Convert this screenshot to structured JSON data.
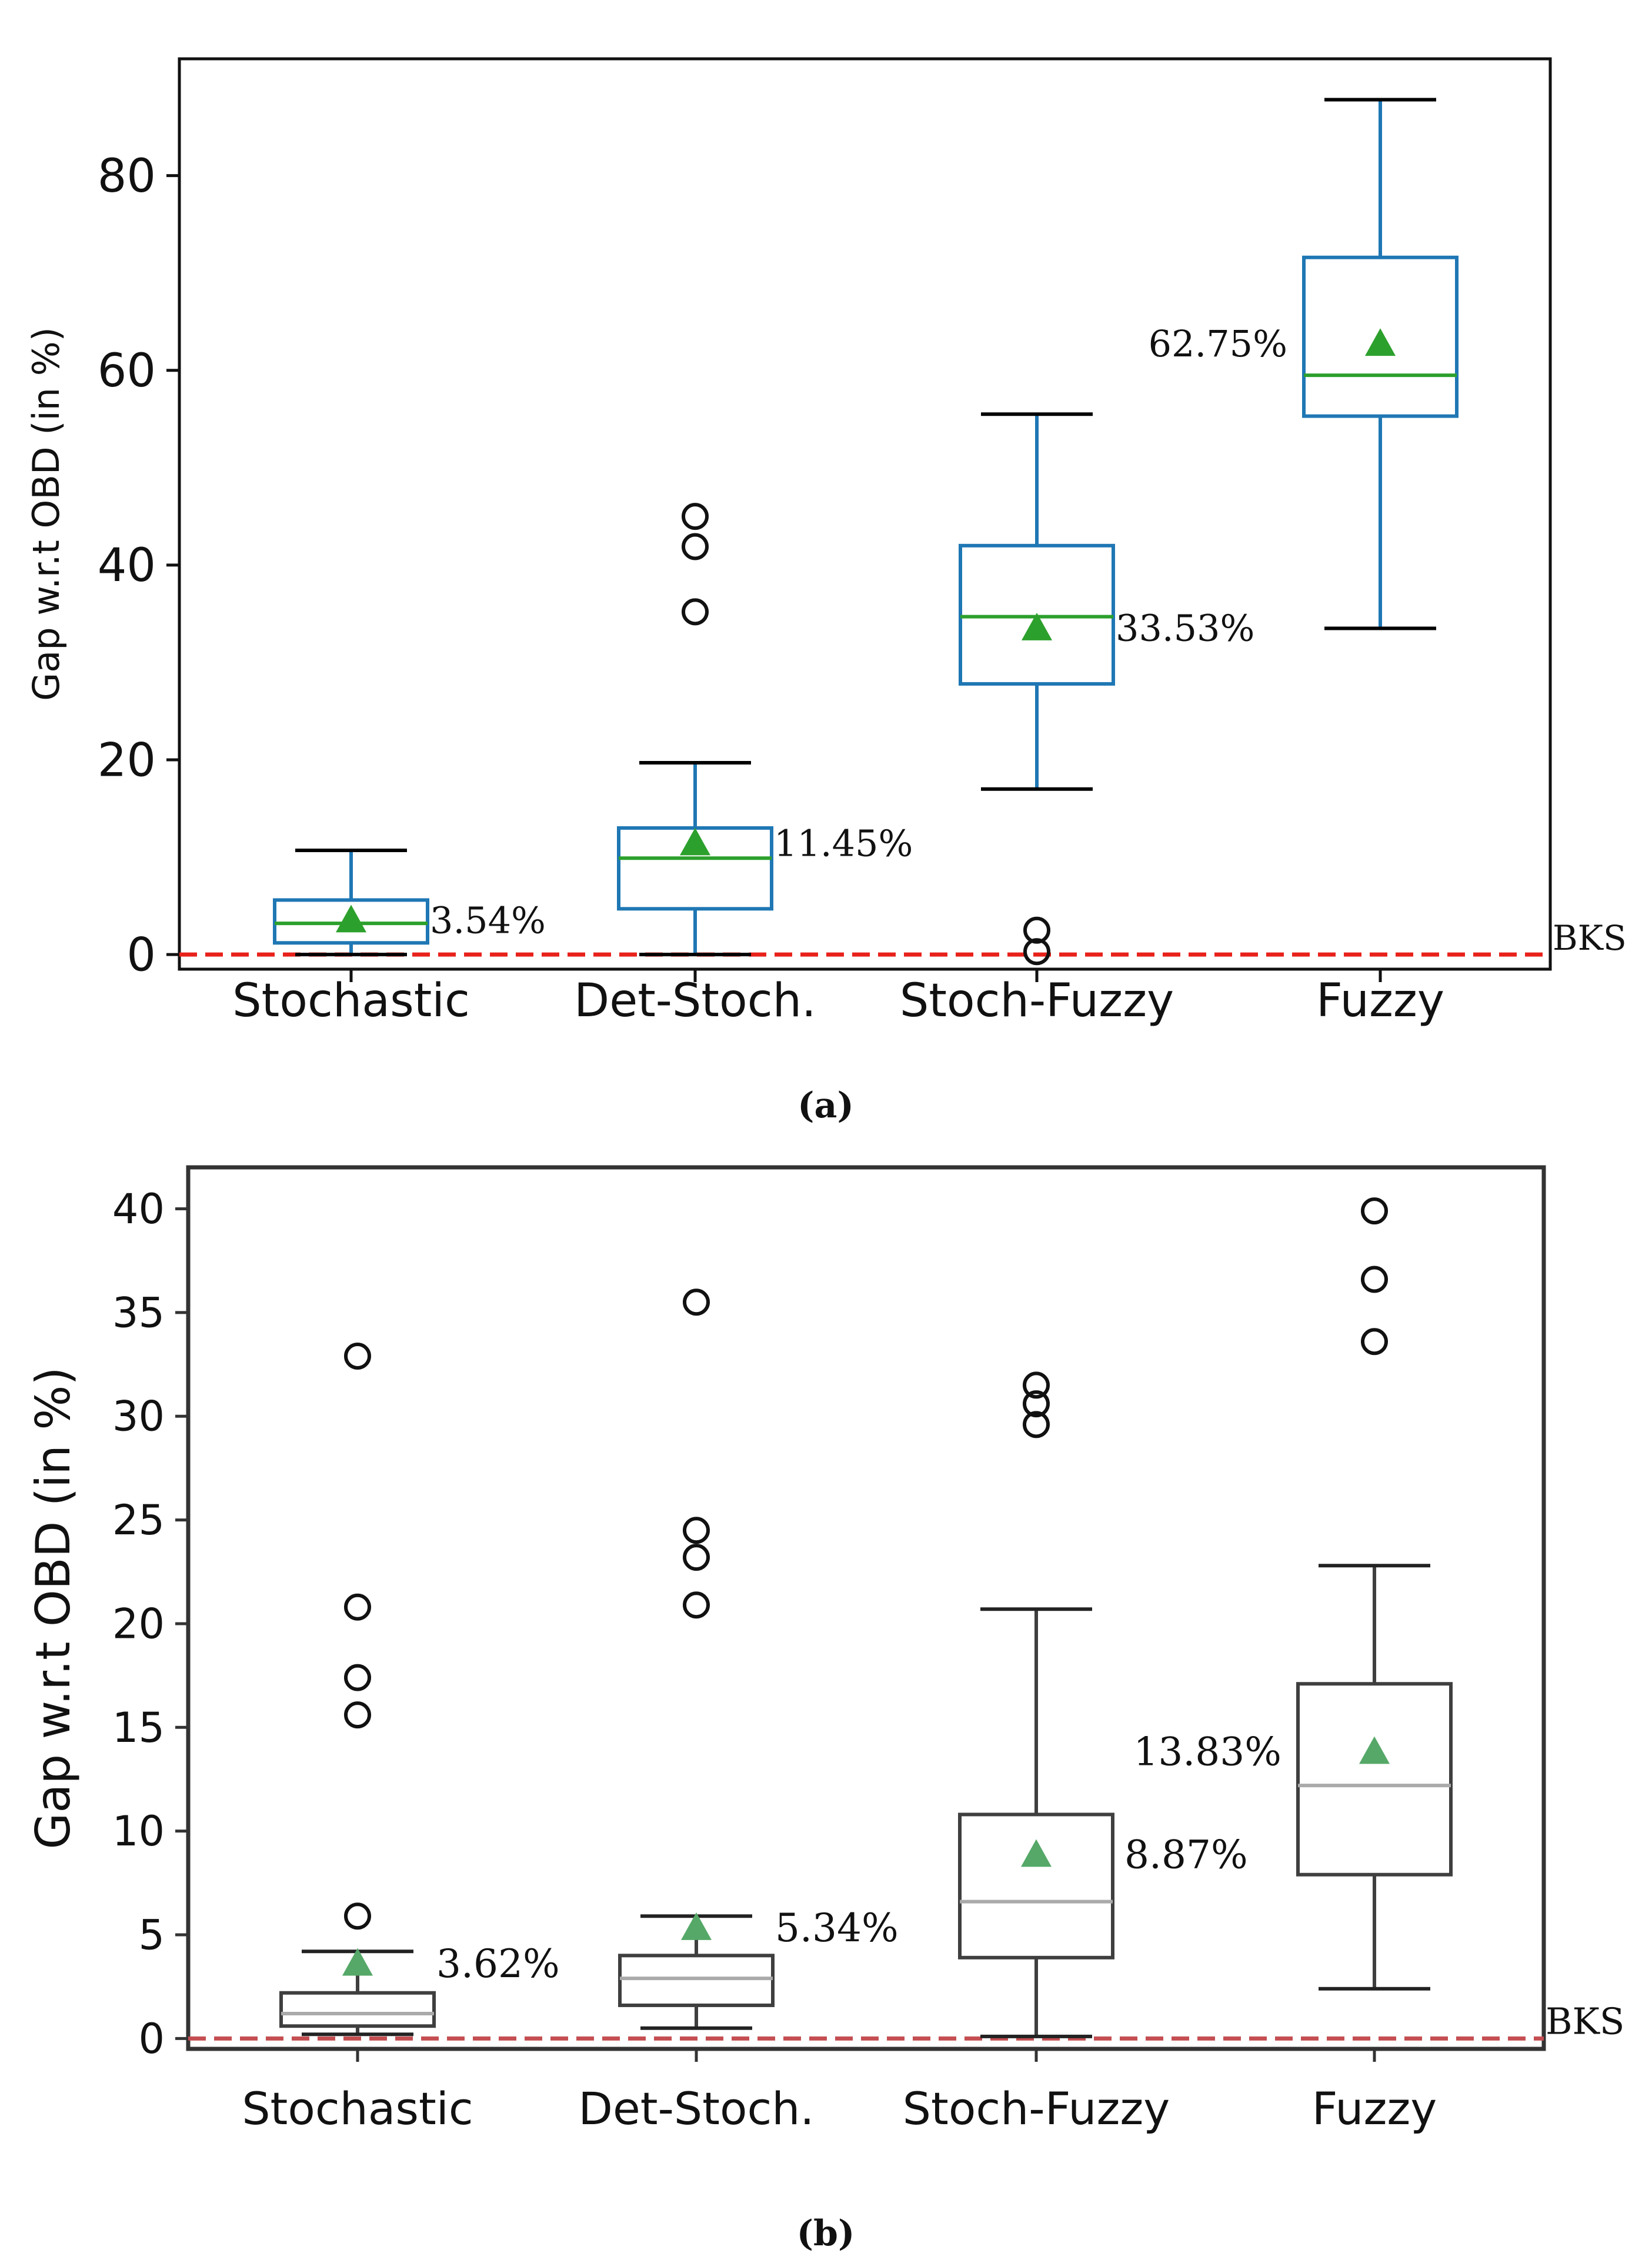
{
  "chart_data": [
    {
      "type": "box",
      "panel_label": "(a)",
      "ylabel": "Gap w.r.t OBD (in %)",
      "xlabel": "",
      "title": "",
      "categories": [
        "Stochastic",
        "Det-Stoch.",
        "Stoch-Fuzzy",
        "Fuzzy"
      ],
      "ylim": [
        -1.5,
        92
      ],
      "yticks": [
        0,
        20,
        40,
        60,
        80
      ],
      "grid": false,
      "boxes": [
        {
          "category": "Stochastic",
          "whisker_low": 0,
          "q1": 1.2,
          "median": 3.2,
          "q3": 5.6,
          "whisker_high": 10.7,
          "mean": 3.54,
          "mean_label": "3.54%",
          "outliers": []
        },
        {
          "category": "Det-Stoch.",
          "whisker_low": 0,
          "q1": 4.7,
          "median": 9.9,
          "q3": 13.0,
          "whisker_high": 19.7,
          "mean": 11.45,
          "mean_label": "11.45%",
          "outliers": [
            35.2,
            41.9,
            45.0
          ]
        },
        {
          "category": "Stoch-Fuzzy",
          "whisker_low": 17.0,
          "q1": 27.8,
          "median": 34.7,
          "q3": 42.0,
          "whisker_high": 55.5,
          "mean": 33.53,
          "mean_label": "33.53%",
          "outliers": [
            0.3,
            2.5
          ]
        },
        {
          "category": "Fuzzy",
          "whisker_low": 33.5,
          "q1": 55.3,
          "median": 59.5,
          "q3": 71.6,
          "whisker_high": 87.8,
          "mean": 62.75,
          "mean_label": "62.75%",
          "outliers": []
        }
      ],
      "reference_line": {
        "y": 0,
        "label": "BKS",
        "color": "#e8221b"
      },
      "colors": {
        "box": "#1f77b4",
        "median": "#2ca02c",
        "mean": "#2ca02c",
        "whisker": "#1f77b4",
        "cap": "#000000"
      }
    },
    {
      "type": "box",
      "panel_label": "(b)",
      "ylabel": "Gap w.r.t OBD (in %)",
      "xlabel": "",
      "title": "",
      "categories": [
        "Stochastic",
        "Det-Stoch.",
        "Stoch-Fuzzy",
        "Fuzzy"
      ],
      "ylim": [
        -0.5,
        42
      ],
      "yticks": [
        0,
        5,
        10,
        15,
        20,
        25,
        30,
        35,
        40
      ],
      "grid": false,
      "boxes": [
        {
          "category": "Stochastic",
          "whisker_low": 0.2,
          "q1": 0.6,
          "median": 1.2,
          "q3": 2.2,
          "whisker_high": 4.2,
          "mean": 3.62,
          "mean_label": "3.62%",
          "outliers": [
            5.9,
            15.6,
            17.4,
            20.8,
            32.9
          ]
        },
        {
          "category": "Det-Stoch.",
          "whisker_low": 0.5,
          "q1": 1.6,
          "median": 2.9,
          "q3": 4.0,
          "whisker_high": 5.9,
          "mean": 5.34,
          "mean_label": "5.34%",
          "outliers": [
            20.9,
            23.2,
            24.5,
            35.5
          ]
        },
        {
          "category": "Stoch-Fuzzy",
          "whisker_low": 0.1,
          "q1": 3.9,
          "median": 6.6,
          "q3": 10.8,
          "whisker_high": 20.7,
          "mean": 8.87,
          "mean_label": "8.87%",
          "outliers": [
            29.6,
            30.6,
            31.5
          ]
        },
        {
          "category": "Fuzzy",
          "whisker_low": 2.4,
          "q1": 7.9,
          "median": 12.2,
          "q3": 17.1,
          "whisker_high": 22.8,
          "mean": 13.83,
          "mean_label": "13.83%",
          "outliers": [
            33.6,
            36.6,
            39.9
          ]
        }
      ],
      "reference_line": {
        "y": 0,
        "label": "BKS",
        "color": "#c44e52"
      },
      "colors": {
        "box": "#3f3f3f",
        "median": "#aaaaaa",
        "mean": "#55a868",
        "whisker": "#3f3f3f",
        "cap": "#222222"
      }
    }
  ]
}
